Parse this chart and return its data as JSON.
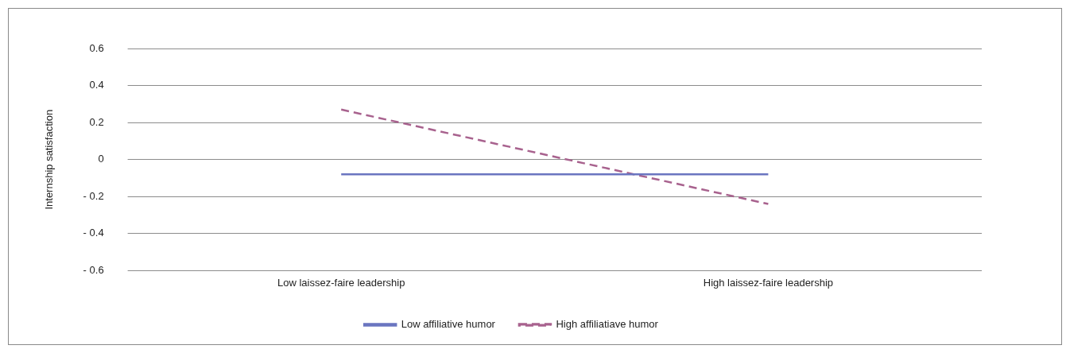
{
  "chart_data": {
    "type": "line",
    "ylabel": "Internship satisfaction",
    "categories": [
      "Low laissez-faire leadership",
      "High laissez-faire leadership"
    ],
    "series": [
      {
        "name": "Low affiliative humor",
        "color": "#6a75c0",
        "values": [
          -0.08,
          -0.08
        ],
        "line_style": "solid"
      },
      {
        "name": "High affiliatiave humor",
        "color": "#a8628e",
        "values": [
          0.27,
          -0.24
        ],
        "line_style": "dashed"
      }
    ],
    "ylim": [
      -0.6,
      0.6
    ],
    "yticks": [
      {
        "value": -0.6,
        "label": "- 0.6"
      },
      {
        "value": -0.4,
        "label": "- 0.4"
      },
      {
        "value": -0.2,
        "label": "- 0.2"
      },
      0,
      0.2,
      0.4,
      0.6
    ],
    "grid": "y",
    "legend": "bottom",
    "marker": "none"
  }
}
